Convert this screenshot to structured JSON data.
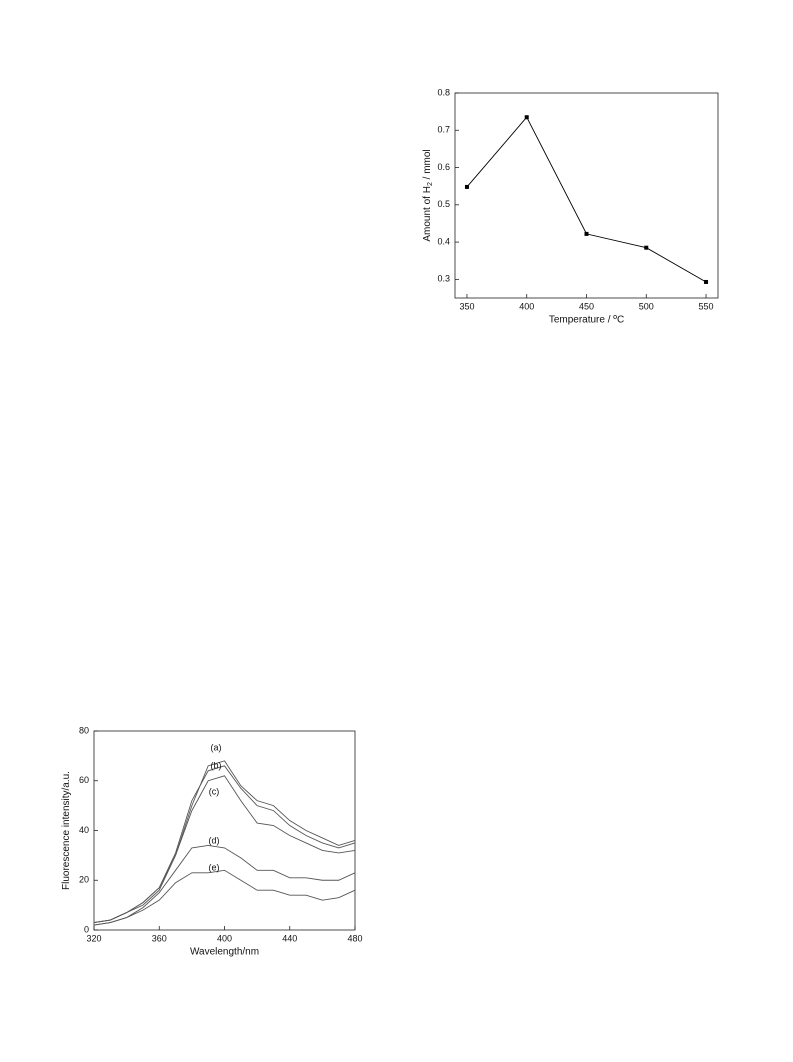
{
  "chart_data": [
    {
      "type": "line",
      "x_label": "Temperature / ºC",
      "y_label": [
        "Amount of H",
        "2",
        " / mmol"
      ],
      "x": [
        350,
        400,
        450,
        500,
        550
      ],
      "series": [
        {
          "color": "#000000",
          "values": [
            0.548,
            0.735,
            0.422,
            0.385,
            0.293
          ]
        }
      ],
      "markers": true,
      "xlim": [
        340,
        560
      ],
      "ylim": [
        0.25,
        0.8
      ],
      "xticks": [
        350,
        400,
        450,
        500,
        550
      ],
      "yticks": [
        0.3,
        0.4,
        0.5,
        0.6,
        0.7,
        0.8
      ]
    },
    {
      "type": "line",
      "x_label": "Wavelength/nm",
      "y_label": [
        "Fluorescence intensity/a.u."
      ],
      "x": [
        320,
        330,
        340,
        350,
        360,
        370,
        380,
        390,
        400,
        410,
        420,
        430,
        440,
        450,
        460,
        470,
        480
      ],
      "series": [
        {
          "name": "(a)",
          "color": "#555555",
          "values": [
            3,
            4,
            7,
            11,
            17,
            30,
            50,
            66,
            68,
            58,
            52,
            50,
            44,
            40,
            37,
            34,
            36
          ]
        },
        {
          "name": "(b)",
          "color": "#555555",
          "values": [
            3,
            4,
            7,
            11,
            17,
            31,
            52,
            64,
            66,
            57,
            50,
            48,
            42,
            38,
            35,
            33,
            35
          ]
        },
        {
          "name": "(c)",
          "color": "#555555",
          "values": [
            3,
            4,
            7,
            10,
            16,
            30,
            48,
            60,
            62,
            52,
            43,
            42,
            38,
            35,
            32,
            31,
            32
          ]
        },
        {
          "name": "(d)",
          "color": "#555555",
          "values": [
            2,
            3,
            5,
            9,
            15,
            24,
            33,
            34,
            33,
            29,
            24,
            24,
            21,
            21,
            20,
            20,
            23
          ]
        },
        {
          "name": "(e)",
          "color": "#555555",
          "values": [
            2,
            3,
            5,
            8,
            12,
            19,
            23,
            23,
            24,
            20,
            16,
            16,
            14,
            14,
            12,
            13,
            16
          ]
        }
      ],
      "markers": false,
      "xlim": [
        320,
        480
      ],
      "ylim": [
        0,
        80
      ],
      "xticks": [
        320,
        360,
        400,
        440,
        480
      ],
      "yticks": [
        0,
        20,
        40,
        60,
        80
      ]
    }
  ]
}
